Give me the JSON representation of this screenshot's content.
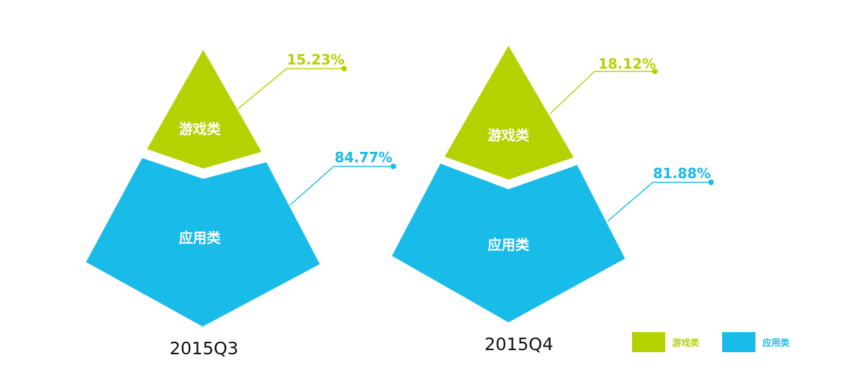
{
  "colors": {
    "game": "#B5D100",
    "app": "#19BBE8"
  },
  "chart_data": {
    "type": "pyramid",
    "categories": [
      "游戏类",
      "应用类"
    ],
    "charts": [
      {
        "period": "2015Q3",
        "game": {
          "label": "游戏类",
          "value": 15.23,
          "value_text": "15.23%"
        },
        "app": {
          "label": "应用类",
          "value": 84.77,
          "value_text": "84.77%"
        }
      },
      {
        "period": "2015Q4",
        "game": {
          "label": "游戏类",
          "value": 18.12,
          "value_text": "18.12%"
        },
        "app": {
          "label": "应用类",
          "value": 81.88,
          "value_text": "81.88%"
        }
      }
    ],
    "legend": {
      "position": "bottom-right",
      "items": [
        {
          "label": "游戏类",
          "color": "#B5D100"
        },
        {
          "label": "应用类",
          "color": "#19BBE8"
        }
      ]
    }
  }
}
